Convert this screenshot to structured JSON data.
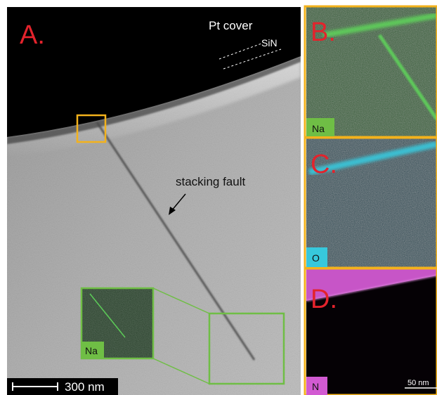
{
  "panels": {
    "a": {
      "letter": "A.",
      "pt_cover_label": "Pt cover",
      "sin_label": "SiN",
      "stacking_fault_label": "stacking fault",
      "scale_bar_label": "300 nm",
      "inset_element": "Na"
    },
    "b": {
      "letter": "B.",
      "element": "Na"
    },
    "c": {
      "letter": "C.",
      "element": "O"
    },
    "d": {
      "letter": "D.",
      "element": "N",
      "scale_bar_label": "50 nm"
    }
  },
  "colors": {
    "panel_letter": "#e3232c",
    "highlight_box": "#f3b21c",
    "inset_box": "#6fbe45",
    "na_map": "#5fd85a",
    "o_map": "#37c8dc",
    "n_map": "#d25ad2"
  }
}
